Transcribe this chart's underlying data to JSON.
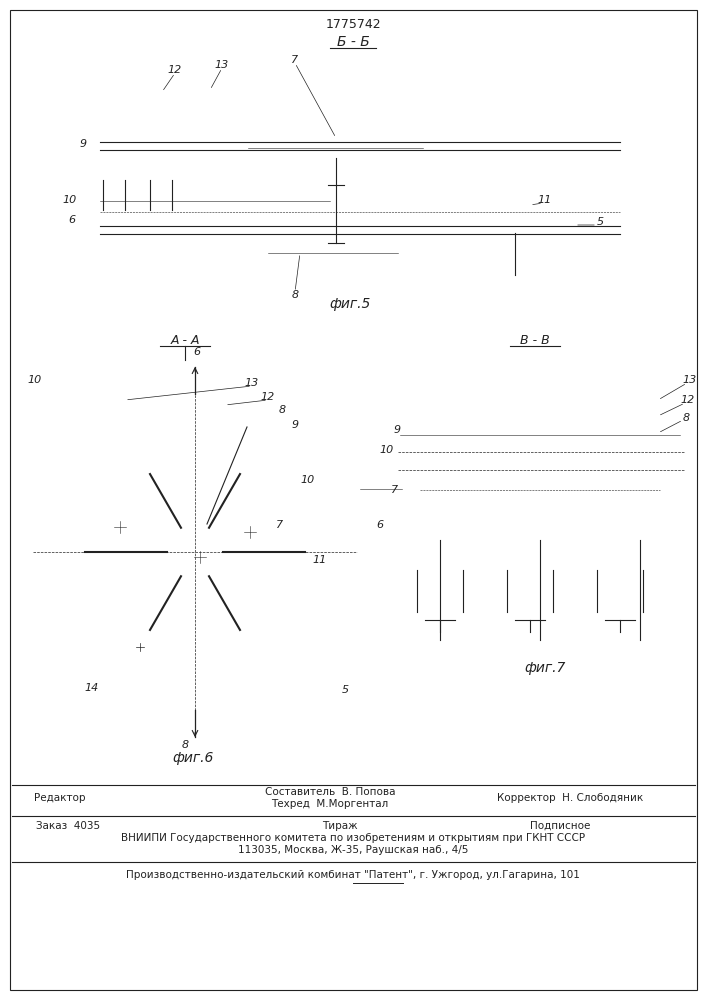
{
  "patent_number": "1775742",
  "fig5_title": "Б - Б",
  "fig6_title": "А - А",
  "fig7_title": "В - В",
  "fig5_label": "фиг.5",
  "fig6_label": "фиг.6",
  "fig7_label": "фиг.7",
  "line_color": "#222222",
  "footer_line1_left": "Редактор",
  "footer_line1_center1": "Составитель  В. Попова",
  "footer_line1_center2": "Техред  М.Моргентал",
  "footer_line1_right": "Корректор  Н. Слободяник",
  "footer_line2_left": "Заказ  4035",
  "footer_line2_center": "Тираж",
  "footer_line2_right": "Подписное",
  "footer_line3": "ВНИИПИ Государственного комитета по изобретениям и открытиям при ГКНТ СССР",
  "footer_line4": "113035, Москва, Ж-35, Раушская наб., 4/5",
  "footer_line5": "Производственно-издательский комбинат \"Патент\", г. Ужгород, ул.Гагарина, 101"
}
